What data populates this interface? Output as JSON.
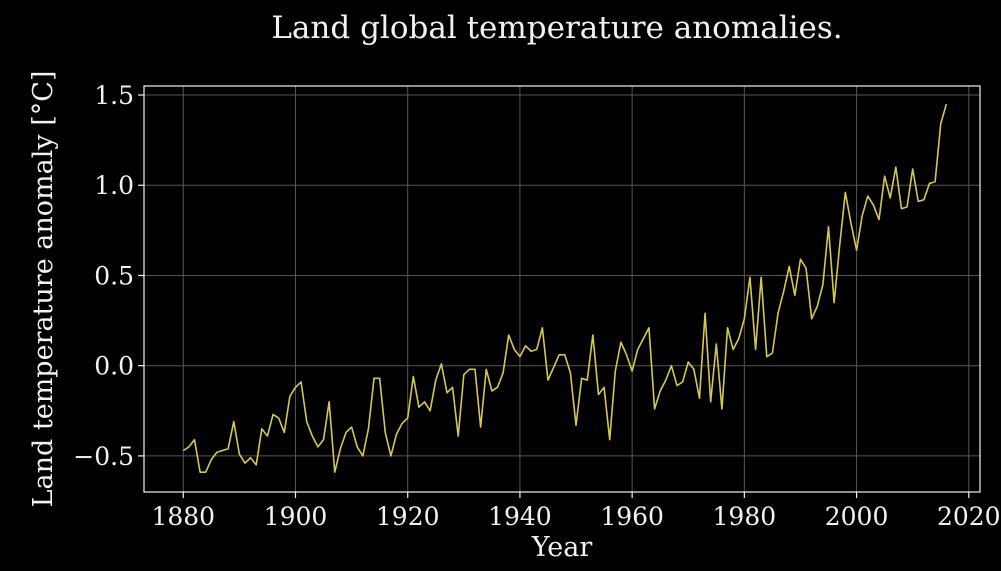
{
  "chart_data": {
    "type": "line",
    "title": "Land global temperature anomalies.",
    "xlabel": "Year",
    "ylabel": "Land temperature anomaly [°C]",
    "xlim": [
      1873,
      2022
    ],
    "ylim": [
      -0.7,
      1.55
    ],
    "xticks": [
      1880,
      1900,
      1920,
      1940,
      1960,
      1980,
      2000,
      2020
    ],
    "yticks": [
      -0.5,
      0.0,
      0.5,
      1.0,
      1.5
    ],
    "ytick_labels": [
      "−0.5",
      "0.0",
      "0.5",
      "1.0",
      "1.5"
    ],
    "grid": true,
    "background": "#000000",
    "series": [
      {
        "color": "#d4c94e",
        "x": [
          1880,
          1881,
          1882,
          1883,
          1884,
          1885,
          1886,
          1887,
          1888,
          1889,
          1890,
          1891,
          1892,
          1893,
          1894,
          1895,
          1896,
          1897,
          1898,
          1899,
          1900,
          1901,
          1902,
          1903,
          1904,
          1905,
          1906,
          1907,
          1908,
          1909,
          1910,
          1911,
          1912,
          1913,
          1914,
          1915,
          1916,
          1917,
          1918,
          1919,
          1920,
          1921,
          1922,
          1923,
          1924,
          1925,
          1926,
          1927,
          1928,
          1929,
          1930,
          1931,
          1932,
          1933,
          1934,
          1935,
          1936,
          1937,
          1938,
          1939,
          1940,
          1941,
          1942,
          1943,
          1944,
          1945,
          1946,
          1947,
          1948,
          1949,
          1950,
          1951,
          1952,
          1953,
          1954,
          1955,
          1956,
          1957,
          1958,
          1959,
          1960,
          1961,
          1962,
          1963,
          1964,
          1965,
          1966,
          1967,
          1968,
          1969,
          1970,
          1971,
          1972,
          1973,
          1974,
          1975,
          1976,
          1977,
          1978,
          1979,
          1980,
          1981,
          1982,
          1983,
          1984,
          1985,
          1986,
          1987,
          1988,
          1989,
          1990,
          1991,
          1992,
          1993,
          1994,
          1995,
          1996,
          1997,
          1998,
          1999,
          2000,
          2001,
          2002,
          2003,
          2004,
          2005,
          2006,
          2007,
          2008,
          2009,
          2010,
          2011,
          2012,
          2013,
          2014,
          2015,
          2016
        ],
        "y": [
          -0.47,
          -0.45,
          -0.41,
          -0.59,
          -0.59,
          -0.52,
          -0.48,
          -0.47,
          -0.46,
          -0.31,
          -0.49,
          -0.54,
          -0.51,
          -0.55,
          -0.35,
          -0.39,
          -0.27,
          -0.29,
          -0.37,
          -0.17,
          -0.12,
          -0.09,
          -0.31,
          -0.39,
          -0.45,
          -0.41,
          -0.2,
          -0.59,
          -0.46,
          -0.37,
          -0.34,
          -0.45,
          -0.5,
          -0.35,
          -0.07,
          -0.07,
          -0.37,
          -0.5,
          -0.38,
          -0.32,
          -0.29,
          -0.06,
          -0.23,
          -0.2,
          -0.25,
          -0.08,
          0.01,
          -0.15,
          -0.12,
          -0.39,
          -0.05,
          -0.02,
          -0.02,
          -0.34,
          -0.02,
          -0.14,
          -0.12,
          -0.04,
          0.17,
          0.09,
          0.05,
          0.11,
          0.08,
          0.09,
          0.21,
          -0.08,
          -0.01,
          0.06,
          0.06,
          -0.04,
          -0.33,
          -0.07,
          -0.08,
          0.17,
          -0.16,
          -0.12,
          -0.41,
          -0.03,
          0.13,
          0.06,
          -0.03,
          0.09,
          0.15,
          0.21,
          -0.24,
          -0.14,
          -0.08,
          0.0,
          -0.11,
          -0.09,
          0.02,
          -0.02,
          -0.18,
          0.29,
          -0.2,
          0.12,
          -0.24,
          0.21,
          0.09,
          0.15,
          0.26,
          0.49,
          0.09,
          0.49,
          0.05,
          0.07,
          0.29,
          0.41,
          0.55,
          0.39,
          0.59,
          0.54,
          0.26,
          0.33,
          0.45,
          0.77,
          0.35,
          0.67,
          0.96,
          0.79,
          0.64,
          0.83,
          0.94,
          0.89,
          0.81,
          1.05,
          0.93,
          1.1,
          0.87,
          0.88,
          1.09,
          0.91,
          0.92,
          1.01,
          1.02,
          1.34,
          1.45
        ]
      }
    ]
  }
}
